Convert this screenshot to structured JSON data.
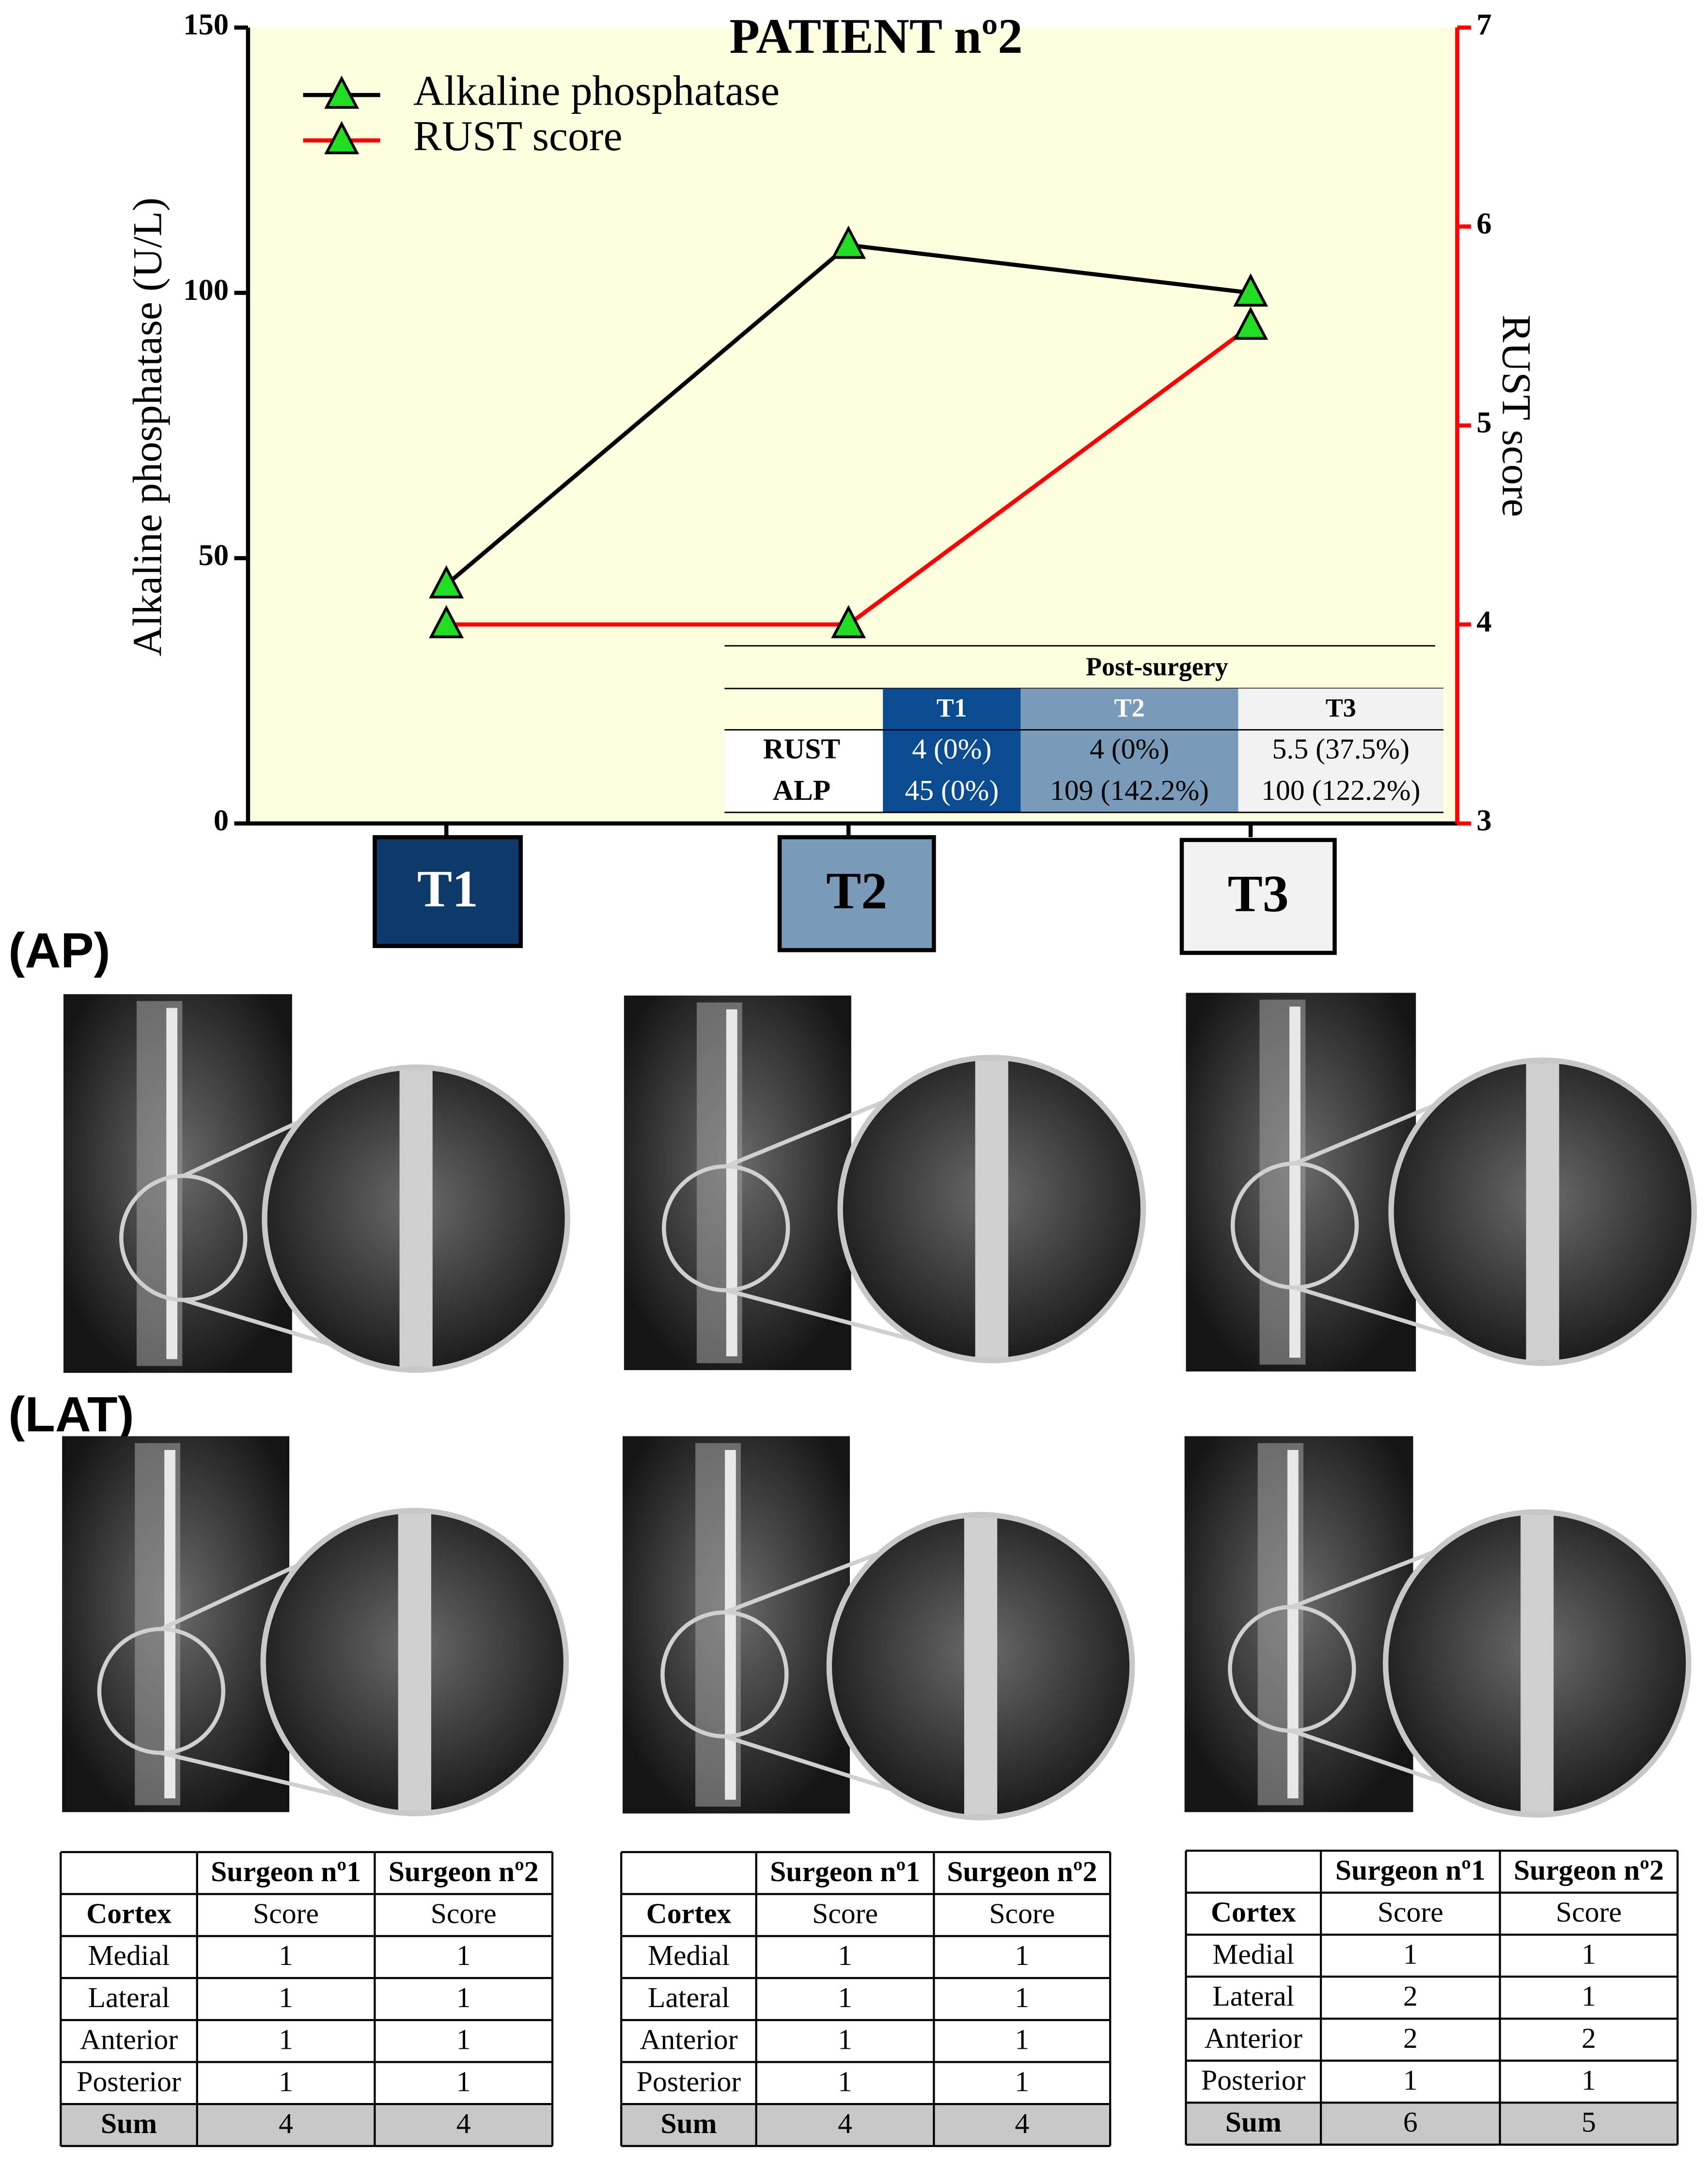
{
  "chart_data": {
    "type": "line",
    "title": "PATIENT nº2",
    "categories": [
      "T1",
      "T2",
      "T3"
    ],
    "category_colors": [
      "#0d3a6b",
      "#7a9ab9",
      "#f2f2f2"
    ],
    "category_text_colors": [
      "#ffffff",
      "#000000",
      "#000000"
    ],
    "series": [
      {
        "name": "Alkaline phosphatase",
        "color": "#000000",
        "marker_color": "#22dd22",
        "values": [
          45,
          109,
          100
        ]
      },
      {
        "name": "RUST score",
        "color": "#ff0000",
        "marker_color": "#22dd22",
        "axis": "y2",
        "values": [
          4,
          4,
          5.5
        ]
      }
    ],
    "ylabel": "Alkaline phosphatase (U/L)",
    "y2label": "RUST score",
    "ylim": [
      0,
      150
    ],
    "yticks": [
      0,
      50,
      100,
      150
    ],
    "y2lim": [
      3,
      7
    ],
    "y2ticks": [
      3,
      4,
      5,
      6,
      7
    ],
    "background": "#fdfde0",
    "legend": "upper left",
    "inset_table": {
      "title": "Post-surgery",
      "header": [
        "T1",
        "T2",
        "T3"
      ],
      "rows": [
        [
          "RUST",
          "4 (0%)",
          "4 (0%)",
          "5.5 (37.5%)"
        ],
        [
          "ALP",
          "45 (0%)",
          "109 (142.2%)",
          "100 (122.2%)"
        ]
      ]
    }
  },
  "panels": {
    "ap_label": "(AP)",
    "lat_label": "(LAT)"
  },
  "score_tables": [
    {
      "header": [
        "Surgeon nº1",
        "Surgeon nº2"
      ],
      "subheader": [
        "Cortex",
        "Score",
        "Score"
      ],
      "rows": [
        [
          "Medial",
          1,
          1
        ],
        [
          "Lateral",
          1,
          1
        ],
        [
          "Anterior",
          1,
          1
        ],
        [
          "Posterior",
          1,
          1
        ]
      ],
      "sum": [
        "Sum",
        4,
        4
      ]
    },
    {
      "header": [
        "Surgeon nº1",
        "Surgeon nº2"
      ],
      "subheader": [
        "Cortex",
        "Score",
        "Score"
      ],
      "rows": [
        [
          "Medial",
          1,
          1
        ],
        [
          "Lateral",
          1,
          1
        ],
        [
          "Anterior",
          1,
          1
        ],
        [
          "Posterior",
          1,
          1
        ]
      ],
      "sum": [
        "Sum",
        4,
        4
      ]
    },
    {
      "header": [
        "Surgeon nº1",
        "Surgeon nº2"
      ],
      "subheader": [
        "Cortex",
        "Score",
        "Score"
      ],
      "rows": [
        [
          "Medial",
          1,
          1
        ],
        [
          "Lateral",
          2,
          1
        ],
        [
          "Anterior",
          2,
          2
        ],
        [
          "Posterior",
          1,
          1
        ]
      ],
      "sum": [
        "Sum",
        6,
        5
      ]
    }
  ]
}
